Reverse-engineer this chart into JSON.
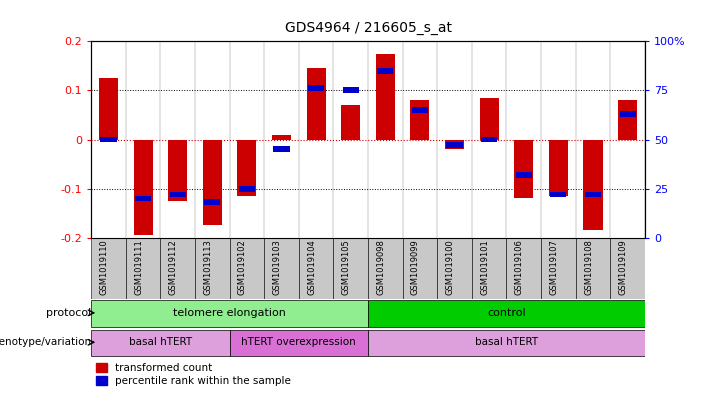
{
  "title": "GDS4964 / 216605_s_at",
  "samples": [
    "GSM1019110",
    "GSM1019111",
    "GSM1019112",
    "GSM1019113",
    "GSM1019102",
    "GSM1019103",
    "GSM1019104",
    "GSM1019105",
    "GSM1019098",
    "GSM1019099",
    "GSM1019100",
    "GSM1019101",
    "GSM1019106",
    "GSM1019107",
    "GSM1019108",
    "GSM1019109"
  ],
  "red_values": [
    0.125,
    -0.195,
    -0.125,
    -0.175,
    -0.115,
    0.01,
    0.145,
    0.07,
    0.175,
    0.08,
    -0.02,
    0.085,
    -0.12,
    -0.115,
    -0.185,
    0.08
  ],
  "blue_percentile": [
    50,
    20,
    22,
    18,
    25,
    45,
    76,
    75,
    85,
    65,
    47,
    50,
    32,
    22,
    22,
    63
  ],
  "ylim": [
    -0.2,
    0.2
  ],
  "yticks_left": [
    -0.2,
    -0.1,
    0.0,
    0.1,
    0.2
  ],
  "yticks_left_labels": [
    "-0.2",
    "-0.1",
    "0",
    "0.1",
    "0.2"
  ],
  "right_ytick_pcts": [
    0,
    25,
    50,
    75,
    100
  ],
  "right_yticklabels": [
    "0",
    "25",
    "50",
    "75",
    "100%"
  ],
  "protocol_groups": [
    {
      "label": "telomere elongation",
      "start": 0,
      "end": 7,
      "color": "#90EE90"
    },
    {
      "label": "control",
      "start": 8,
      "end": 15,
      "color": "#00CC00"
    }
  ],
  "genotype_groups": [
    {
      "label": "basal hTERT",
      "start": 0,
      "end": 3,
      "color": "#DDA0DD"
    },
    {
      "label": "hTERT overexpression",
      "start": 4,
      "end": 7,
      "color": "#DA70D6"
    },
    {
      "label": "basal hTERT",
      "start": 8,
      "end": 15,
      "color": "#DDA0DD"
    }
  ],
  "red_color": "#CC0000",
  "blue_color": "#0000CC",
  "zero_line_color": "#CC0000",
  "dotted_color": "#000000",
  "bg_color": "#FFFFFF",
  "label_bg_color": "#C8C8C8",
  "legend_red": "transformed count",
  "legend_blue": "percentile rank within the sample",
  "bar_width": 0.55
}
